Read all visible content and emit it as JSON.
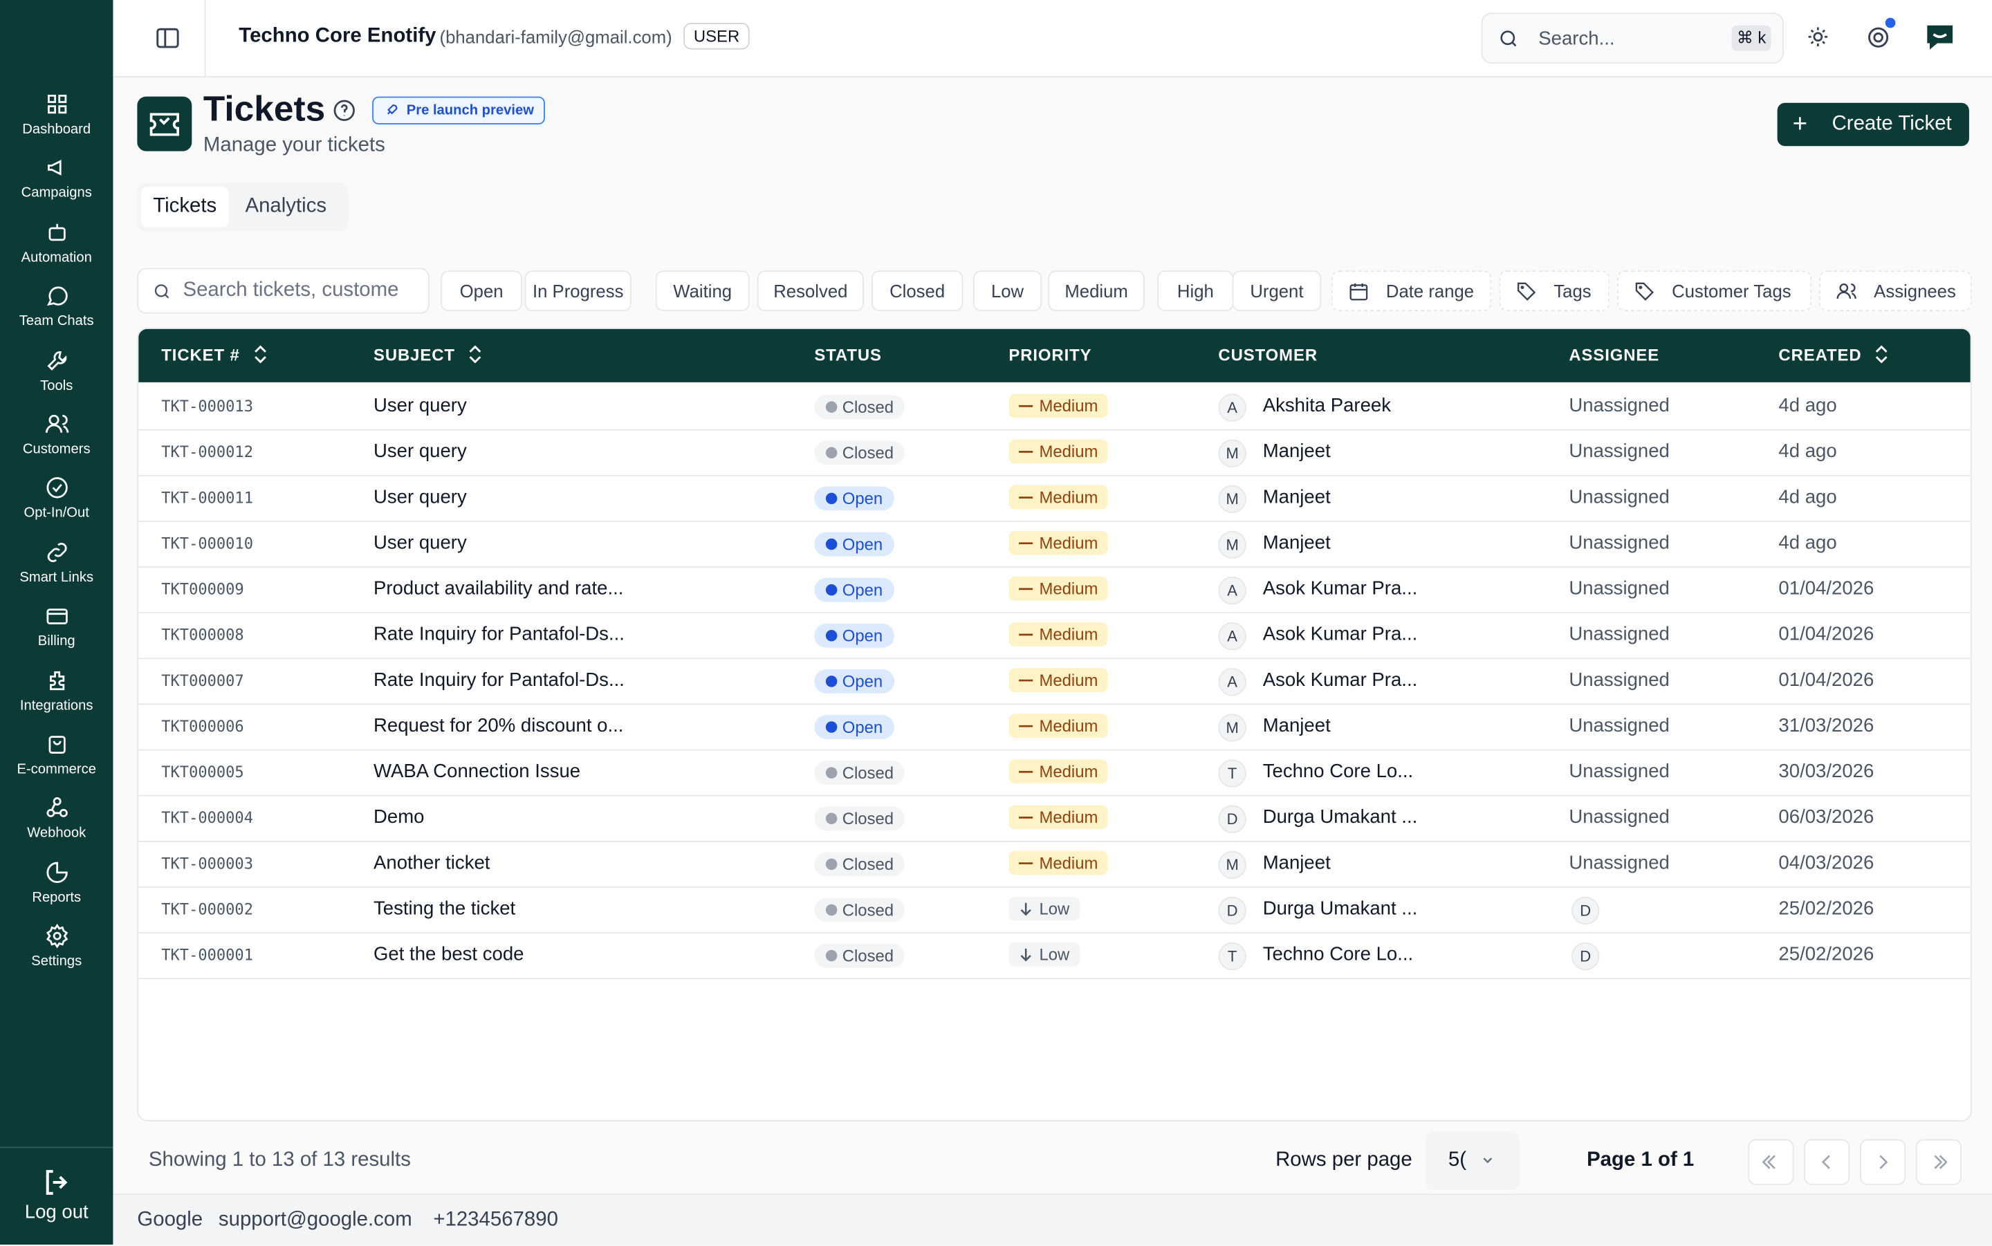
{
  "sidebar": {
    "items": [
      "Dashboard",
      "Campaigns",
      "Automation",
      "Team Chats",
      "Tools",
      "Customers",
      "Opt-In/Out",
      "Smart Links",
      "Billing",
      "Integrations",
      "E-commerce",
      "Webhook",
      "Reports",
      "Settings"
    ],
    "logout": "Log out"
  },
  "header": {
    "org": "Techno Core Enotify",
    "email": "(bhandari-family@gmail.com)",
    "role": "USER",
    "search": "Search...",
    "shortcut": "⌘ k"
  },
  "page": {
    "title": "Tickets",
    "badge": "Pre launch preview",
    "subtitle": "Manage your tickets",
    "create": "Create Ticket",
    "tabs": [
      "Tickets",
      "Analytics"
    ]
  },
  "filters": {
    "search": "Search tickets, custome",
    "chips": [
      "Open",
      "In Progress",
      "Waiting",
      "Resolved",
      "Closed",
      "Low",
      "Medium",
      "High",
      "Urgent"
    ],
    "date": "Date range",
    "tags": "Tags",
    "customer_tags": "Customer Tags",
    "assignees": "Assignees"
  },
  "table": {
    "columns": [
      "TICKET #",
      "SUBJECT",
      "STATUS",
      "PRIORITY",
      "CUSTOMER",
      "ASSIGNEE",
      "CREATED"
    ],
    "rows": [
      [
        "TKT-000013",
        "User query",
        "Closed",
        "Medium",
        "A",
        "Akshita Pareek",
        "Unassigned",
        "4d ago"
      ],
      [
        "TKT-000012",
        "User query",
        "Closed",
        "Medium",
        "M",
        "Manjeet",
        "Unassigned",
        "4d ago"
      ],
      [
        "TKT-000011",
        "User query",
        "Open",
        "Medium",
        "M",
        "Manjeet",
        "Unassigned",
        "4d ago"
      ],
      [
        "TKT-000010",
        "User query",
        "Open",
        "Medium",
        "M",
        "Manjeet",
        "Unassigned",
        "4d ago"
      ],
      [
        "TKT000009",
        "Product availability and rate...",
        "Open",
        "Medium",
        "A",
        "Asok Kumar Pra...",
        "Unassigned",
        "01/04/2026"
      ],
      [
        "TKT000008",
        "Rate Inquiry for Pantafol-Ds...",
        "Open",
        "Medium",
        "A",
        "Asok Kumar Pra...",
        "Unassigned",
        "01/04/2026"
      ],
      [
        "TKT000007",
        "Rate Inquiry for Pantafol-Ds...",
        "Open",
        "Medium",
        "A",
        "Asok Kumar Pra...",
        "Unassigned",
        "01/04/2026"
      ],
      [
        "TKT000006",
        "Request for 20% discount o...",
        "Open",
        "Medium",
        "M",
        "Manjeet",
        "Unassigned",
        "31/03/2026"
      ],
      [
        "TKT000005",
        "WABA Connection Issue",
        "Closed",
        "Medium",
        "T",
        "Techno Core Lo...",
        "Unassigned",
        "30/03/2026"
      ],
      [
        "TKT-000004",
        "Demo",
        "Closed",
        "Medium",
        "D",
        "Durga Umakant ...",
        "Unassigned",
        "06/03/2026"
      ],
      [
        "TKT-000003",
        "Another ticket",
        "Closed",
        "Medium",
        "M",
        "Manjeet",
        "Unassigned",
        "04/03/2026"
      ],
      [
        "TKT-000002",
        "Testing the ticket",
        "Closed",
        "Low",
        "D",
        "Durga Umakant ...",
        "D",
        "25/02/2026"
      ],
      [
        "TKT-000001",
        "Get the best code",
        "Closed",
        "Low",
        "T",
        "Techno Core Lo...",
        "D",
        "25/02/2026"
      ]
    ]
  },
  "footer": {
    "showing": "Showing 1 to 13 of 13 results",
    "rows_label": "Rows per page",
    "rows_value": "5(",
    "page": "Page 1 of 1"
  },
  "bottom": {
    "company": "Google",
    "email": "support@google.com",
    "phone": "+1234567890"
  }
}
